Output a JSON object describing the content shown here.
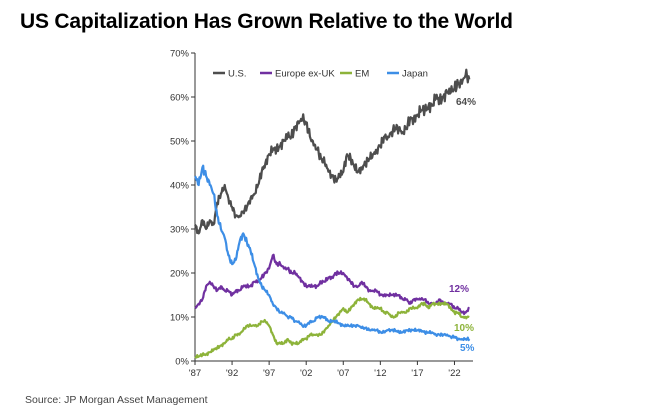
{
  "title": "US Capitalization Has Grown Relative to the World",
  "source": "Source: JP Morgan Asset Management",
  "chart_data": {
    "type": "line",
    "title": "US Capitalization Has Grown Relative to the World",
    "xlabel": "",
    "ylabel": "",
    "xlim": [
      1987,
      2024.5
    ],
    "ylim": [
      0,
      70
    ],
    "x_ticks": [
      {
        "value": 1987,
        "label": "'87"
      },
      {
        "value": 1992,
        "label": "'92"
      },
      {
        "value": 1997,
        "label": "'97"
      },
      {
        "value": 2002,
        "label": "'02"
      },
      {
        "value": 2007,
        "label": "'07"
      },
      {
        "value": 2012,
        "label": "'12"
      },
      {
        "value": 2017,
        "label": "'17"
      },
      {
        "value": 2022,
        "label": "'22"
      }
    ],
    "y_ticks": [
      {
        "value": 0,
        "label": "0%"
      },
      {
        "value": 10,
        "label": "10%"
      },
      {
        "value": 20,
        "label": "20%"
      },
      {
        "value": 30,
        "label": "30%"
      },
      {
        "value": 40,
        "label": "40%"
      },
      {
        "value": 50,
        "label": "50%"
      },
      {
        "value": 60,
        "label": "60%"
      },
      {
        "value": 70,
        "label": "70%"
      }
    ],
    "grid": false,
    "legend_position": "top-left",
    "series": [
      {
        "name": "U.S.",
        "color": "#4d4d4d",
        "end_label": "64%",
        "x": [
          1987,
          1987.5,
          1988,
          1988.5,
          1989,
          1989.5,
          1990,
          1990.5,
          1991,
          1991.5,
          1992,
          1992.5,
          1993,
          1993.5,
          1994,
          1994.5,
          1995,
          1995.5,
          1996,
          1996.5,
          1997,
          1997.5,
          1998,
          1998.5,
          1999,
          1999.5,
          2000,
          2000.5,
          2001,
          2001.5,
          2002,
          2002.5,
          2003,
          2003.5,
          2004,
          2004.5,
          2005,
          2005.5,
          2006,
          2006.5,
          2007,
          2007.5,
          2008,
          2008.5,
          2009,
          2009.5,
          2010,
          2010.5,
          2011,
          2011.5,
          2012,
          2012.5,
          2013,
          2013.5,
          2014,
          2014.5,
          2015,
          2015.5,
          2016,
          2016.5,
          2017,
          2017.5,
          2018,
          2018.5,
          2019,
          2019.5,
          2020,
          2020.5,
          2021,
          2021.5,
          2022,
          2022.5,
          2023,
          2023.5,
          2024
        ],
        "values": [
          31,
          29,
          32,
          30,
          32,
          31,
          36,
          38,
          40,
          37,
          35,
          33,
          33,
          34,
          35,
          37,
          38,
          40,
          43,
          45,
          47,
          48,
          48,
          49,
          50,
          51,
          51,
          53,
          54,
          55,
          54,
          51,
          49,
          48,
          46,
          45,
          43,
          42,
          41,
          42,
          43,
          47,
          46,
          44,
          43,
          44,
          45,
          46,
          47,
          48,
          49,
          51,
          51,
          52,
          53,
          53,
          52,
          53,
          55,
          55,
          56,
          57,
          57,
          58,
          58,
          60,
          59,
          60,
          61,
          61,
          62,
          63,
          63,
          65,
          64
        ]
      },
      {
        "name": "Europe ex-UK",
        "color": "#7030a0",
        "end_label": "12%",
        "x": [
          1987,
          1987.5,
          1988,
          1988.5,
          1989,
          1989.5,
          1990,
          1990.5,
          1991,
          1991.5,
          1992,
          1992.5,
          1993,
          1993.5,
          1994,
          1994.5,
          1995,
          1995.5,
          1996,
          1996.5,
          1997,
          1997.5,
          1998,
          1998.5,
          1999,
          1999.5,
          2000,
          2000.5,
          2001,
          2001.5,
          2002,
          2002.5,
          2003,
          2003.5,
          2004,
          2004.5,
          2005,
          2005.5,
          2006,
          2006.5,
          2007,
          2007.5,
          2008,
          2008.5,
          2009,
          2009.5,
          2010,
          2010.5,
          2011,
          2011.5,
          2012,
          2012.5,
          2013,
          2013.5,
          2014,
          2014.5,
          2015,
          2015.5,
          2016,
          2016.5,
          2017,
          2017.5,
          2018,
          2018.5,
          2019,
          2019.5,
          2020,
          2020.5,
          2021,
          2021.5,
          2022,
          2022.5,
          2023,
          2023.5,
          2024
        ],
        "values": [
          12,
          13,
          14,
          17,
          18,
          17,
          16,
          17,
          16,
          16,
          15,
          16,
          16,
          17,
          17,
          17,
          18,
          18,
          19,
          20,
          21,
          24,
          22,
          22,
          21,
          21,
          20,
          20,
          19,
          18,
          17,
          17,
          17,
          17,
          18,
          18,
          19,
          19,
          20,
          20,
          20,
          19,
          18,
          17,
          17,
          18,
          17,
          16,
          16,
          16,
          15,
          15,
          15,
          15,
          15,
          15,
          14,
          14,
          13,
          14,
          14,
          14,
          14,
          13,
          13,
          13,
          14,
          13,
          13,
          13,
          12,
          12,
          11,
          11,
          12
        ]
      },
      {
        "name": "EM",
        "color": "#8db33a",
        "end_label": "10%",
        "x": [
          1987,
          1987.5,
          1988,
          1988.5,
          1989,
          1989.5,
          1990,
          1990.5,
          1991,
          1991.5,
          1992,
          1992.5,
          1993,
          1993.5,
          1994,
          1994.5,
          1995,
          1995.5,
          1996,
          1996.5,
          1997,
          1997.5,
          1998,
          1998.5,
          1999,
          1999.5,
          2000,
          2000.5,
          2001,
          2001.5,
          2002,
          2002.5,
          2003,
          2003.5,
          2004,
          2004.5,
          2005,
          2005.5,
          2006,
          2006.5,
          2007,
          2007.5,
          2008,
          2008.5,
          2009,
          2009.5,
          2010,
          2010.5,
          2011,
          2011.5,
          2012,
          2012.5,
          2013,
          2013.5,
          2014,
          2014.5,
          2015,
          2015.5,
          2016,
          2016.5,
          2017,
          2017.5,
          2018,
          2018.5,
          2019,
          2019.5,
          2020,
          2020.5,
          2021,
          2021.5,
          2022,
          2022.5,
          2023,
          2023.5,
          2024
        ],
        "values": [
          1,
          1,
          1.5,
          1.5,
          2,
          2.5,
          3,
          3.5,
          4,
          5,
          5,
          6,
          6,
          7,
          8,
          8,
          8,
          8,
          9,
          9,
          8,
          6,
          4,
          4,
          4,
          5,
          4,
          4,
          4,
          5,
          5,
          6,
          6,
          6,
          6,
          7,
          8,
          9,
          10,
          11,
          12,
          11,
          12,
          13,
          14,
          14,
          14,
          13,
          12,
          12,
          12,
          11,
          11,
          10,
          10,
          11,
          11,
          11,
          12,
          12,
          12,
          13,
          13,
          12,
          13,
          13,
          13,
          13,
          13,
          12,
          11,
          11,
          10,
          10,
          10
        ]
      },
      {
        "name": "Japan",
        "color": "#3d8ee6",
        "end_label": "5%",
        "x": [
          1987,
          1987.5,
          1988,
          1988.5,
          1989,
          1989.5,
          1990,
          1990.5,
          1991,
          1991.5,
          1992,
          1992.5,
          1993,
          1993.5,
          1994,
          1994.5,
          1995,
          1995.5,
          1996,
          1996.5,
          1997,
          1997.5,
          1998,
          1998.5,
          1999,
          1999.5,
          2000,
          2000.5,
          2001,
          2001.5,
          2002,
          2002.5,
          2003,
          2003.5,
          2004,
          2004.5,
          2005,
          2005.5,
          2006,
          2006.5,
          2007,
          2007.5,
          2008,
          2008.5,
          2009,
          2009.5,
          2010,
          2010.5,
          2011,
          2011.5,
          2012,
          2012.5,
          2013,
          2013.5,
          2014,
          2014.5,
          2015,
          2015.5,
          2016,
          2016.5,
          2017,
          2017.5,
          2018,
          2018.5,
          2019,
          2019.5,
          2020,
          2020.5,
          2021,
          2021.5,
          2022,
          2022.5,
          2023,
          2023.5,
          2024
        ],
        "values": [
          42,
          40,
          44,
          42,
          40,
          38,
          33,
          30,
          28,
          24,
          22,
          23,
          27,
          29,
          27,
          25,
          22,
          19,
          17,
          16,
          15,
          13,
          12,
          11,
          11,
          10,
          10,
          9,
          9,
          8,
          8,
          9,
          9,
          10,
          10,
          10,
          9,
          9,
          9,
          8.5,
          8,
          8,
          8,
          8,
          8,
          7.5,
          7.5,
          7,
          7,
          7,
          6.5,
          6.5,
          7,
          7,
          7,
          6.5,
          6.5,
          7,
          7,
          7,
          7,
          7,
          6.5,
          6.5,
          6.5,
          6,
          6,
          6,
          6,
          5.5,
          5.5,
          5,
          5,
          5,
          5
        ]
      }
    ]
  }
}
